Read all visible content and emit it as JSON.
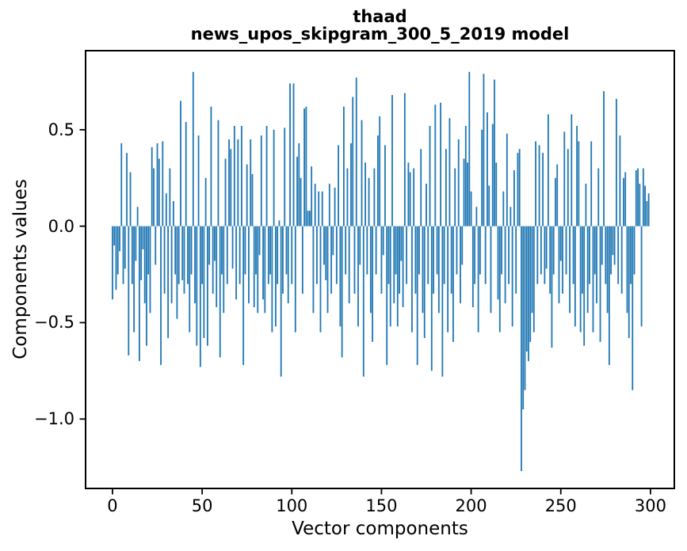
{
  "figure": {
    "title_line1": "thaad",
    "title_line2": "news_upos_skipgram_300_5_2019 model",
    "xlabel": "Vector components",
    "ylabel": "Components values"
  },
  "chart_data": {
    "type": "bar",
    "title": "thaad\nnews_upos_skipgram_300_5_2019 model",
    "xlabel": "Vector components",
    "ylabel": "Components values",
    "n_components": 300,
    "bar_color": "#1f77b4",
    "bar_width": 0.8,
    "xlim": [
      -15.0,
      313.3
    ],
    "ylim": [
      -1.36,
      0.91
    ],
    "grid": false,
    "legend": "none",
    "x_tick_values": [
      0,
      50,
      100,
      150,
      200,
      250,
      300
    ],
    "x_tick_labels": [
      "0",
      "50",
      "100",
      "150",
      "200",
      "250",
      "300"
    ],
    "y_tick_values": [
      0.5,
      0.0,
      -0.5,
      -1.0
    ],
    "y_tick_labels": [
      "0.5",
      "0.0",
      "−0.5",
      "−1.0"
    ],
    "values": [
      -0.38,
      -0.1,
      -0.33,
      -0.25,
      -0.13,
      0.43,
      -0.3,
      -0.22,
      0.38,
      -0.67,
      0.28,
      -0.3,
      -0.55,
      -0.18,
      0.1,
      -0.7,
      -0.28,
      -0.12,
      -0.4,
      -0.62,
      -0.25,
      -0.45,
      0.41,
      0.3,
      -0.2,
      0.43,
      0.35,
      -0.72,
      0.44,
      -0.35,
      0.17,
      -0.58,
      0.3,
      -0.4,
      0.13,
      -0.25,
      -0.48,
      -0.3,
      0.65,
      -0.28,
      -0.35,
      0.54,
      -0.3,
      -0.55,
      -0.25,
      0.8,
      -0.4,
      -0.62,
      0.47,
      -0.73,
      -0.3,
      -0.58,
      0.25,
      -0.62,
      -0.2,
      0.62,
      -0.35,
      -0.18,
      -0.42,
      0.55,
      -0.68,
      -0.25,
      -0.45,
      0.35,
      -0.3,
      0.45,
      0.4,
      -0.22,
      0.52,
      -0.38,
      0.45,
      -0.3,
      0.52,
      -0.72,
      -0.25,
      0.32,
      -0.4,
      0.45,
      0.27,
      -0.42,
      -0.25,
      -0.45,
      -0.15,
      0.47,
      -0.38,
      -0.45,
      0.52,
      -0.3,
      -0.25,
      -0.55,
      0.5,
      -0.52,
      -0.3,
      0.03,
      -0.78,
      -0.35,
      0.51,
      -0.25,
      -0.4,
      0.74,
      -0.3,
      0.74,
      -0.55,
      0.36,
      0.43,
      0.25,
      -0.35,
      0.61,
      0.62,
      0.08,
      0.08,
      0.31,
      -0.45,
      0.22,
      -0.3,
      0.18,
      -0.55,
      0.18,
      -0.2,
      -0.28,
      -0.45,
      0.22,
      -0.35,
      -0.15,
      0.2,
      -0.3,
      0.42,
      -0.52,
      -0.68,
      0.62,
      -0.25,
      0.3,
      -0.4,
      0.43,
      0.67,
      -0.35,
      0.77,
      -0.52,
      -0.2,
      0.55,
      -0.78,
      0.33,
      -0.25,
      0.25,
      -0.45,
      -0.6,
      0.3,
      -0.25,
      0.47,
      0.57,
      -0.35,
      -0.15,
      0.42,
      -0.72,
      -0.3,
      -0.52,
      0.68,
      -0.4,
      -0.25,
      -0.52,
      -0.35,
      -0.18,
      -0.42,
      0.69,
      -0.3,
      0.33,
      0.28,
      -0.55,
      0.3,
      -0.35,
      -0.72,
      -0.25,
      0.4,
      -0.45,
      -0.58,
      0.22,
      -0.3,
      0.52,
      -0.75,
      -0.35,
      0.63,
      -0.25,
      -0.45,
      0.64,
      -0.78,
      -0.3,
      0.4,
      -0.55,
      0.56,
      -0.35,
      -0.6,
      0.3,
      -0.25,
      0.45,
      -0.4,
      -0.2,
      0.35,
      0.52,
      0.33,
      0.8,
      0.18,
      -0.42,
      -0.3,
      0.1,
      -0.55,
      -0.25,
      0.5,
      0.79,
      -0.3,
      0.59,
      0.21,
      -0.45,
      0.53,
      0.76,
      0.33,
      -0.38,
      -0.55,
      -0.25,
      0.18,
      -0.4,
      0.48,
      -0.3,
      0.1,
      -0.52,
      0.29,
      -0.35,
      0.38,
      0.4,
      -1.27,
      -0.95,
      -0.85,
      -0.65,
      -0.7,
      -0.6,
      -0.45,
      -0.55,
      0.44,
      -0.3,
      0.42,
      -0.25,
      0.38,
      -0.3,
      -0.22,
      0.58,
      -0.35,
      -0.63,
      -0.25,
      0.25,
      0.32,
      -0.4,
      -0.18,
      -0.35,
      0.49,
      -0.25,
      0.4,
      -0.45,
      0.58,
      -0.3,
      -0.52,
      0.52,
      0.44,
      -0.55,
      -0.35,
      -0.62,
      0.22,
      -0.45,
      -0.3,
      0.44,
      -0.55,
      -0.25,
      -0.4,
      0.3,
      -0.6,
      -0.2,
      0.7,
      -0.3,
      -0.45,
      -0.72,
      -0.25,
      -0.15,
      -0.2,
      0.66,
      -0.3,
      0.47,
      -0.35,
      0.25,
      0.28,
      -0.45,
      -0.58,
      -0.3,
      -0.85,
      -0.25,
      0.29,
      0.3,
      0.22,
      -0.52,
      0.3,
      0.21,
      0.13,
      0.17
    ]
  }
}
